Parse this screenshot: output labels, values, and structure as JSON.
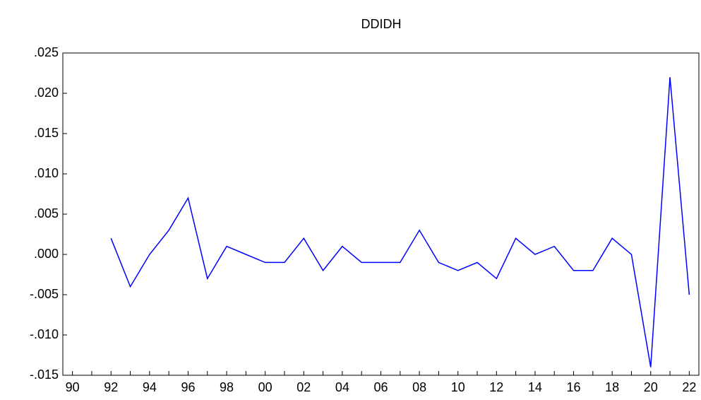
{
  "chart_data": {
    "type": "line",
    "title": "DDIDH",
    "categories": [
      "90",
      null,
      "92",
      null,
      "94",
      null,
      "96",
      null,
      "98",
      null,
      "00",
      null,
      "02",
      null,
      "04",
      null,
      "06",
      null,
      "08",
      null,
      "10",
      null,
      "12",
      null,
      "14",
      null,
      "16",
      null,
      "18",
      null,
      "20",
      null,
      "22"
    ],
    "series": [
      {
        "name": "DDIDH",
        "color": "#0000ff",
        "values": [
          null,
          null,
          0.002,
          -0.004,
          0.0,
          0.003,
          0.007,
          -0.003,
          0.001,
          0.0,
          -0.001,
          -0.001,
          0.002,
          -0.002,
          0.001,
          -0.001,
          -0.001,
          -0.001,
          0.003,
          -0.001,
          -0.002,
          -0.001,
          -0.003,
          0.002,
          0.0,
          0.001,
          -0.002,
          -0.002,
          0.002,
          0.0,
          -0.014,
          0.022,
          -0.005
        ]
      }
    ],
    "ylim": [
      -0.015,
      0.025
    ],
    "yticks": [
      {
        "value": -0.015,
        "label": "-.015"
      },
      {
        "value": -0.01,
        "label": "-.010"
      },
      {
        "value": -0.005,
        "label": "-.005"
      },
      {
        "value": 0,
        "label": ".000"
      },
      {
        "value": 0.005,
        "label": ".005"
      },
      {
        "value": 0.01,
        "label": ".010"
      },
      {
        "value": 0.015,
        "label": ".015"
      },
      {
        "value": 0.02,
        "label": ".020"
      },
      {
        "value": 0.025,
        "label": ".025"
      }
    ],
    "grid": false
  }
}
